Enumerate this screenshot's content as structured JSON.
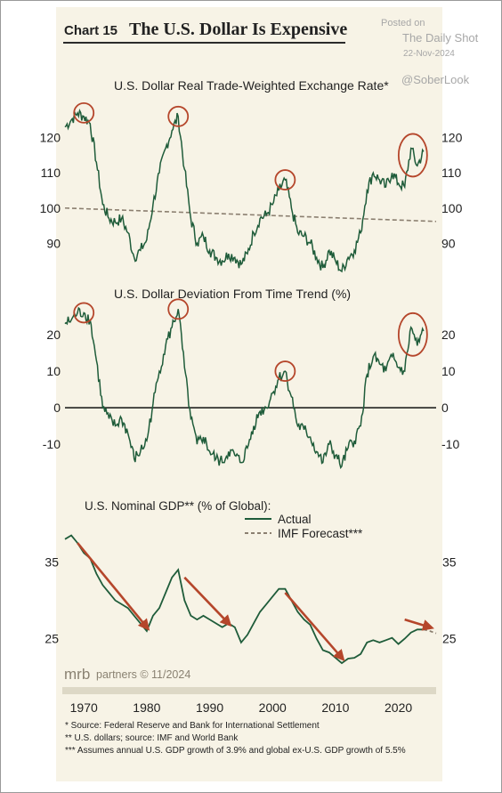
{
  "header": {
    "chart_number": "Chart 15",
    "title": "The U.S. Dollar Is Expensive"
  },
  "watermark": {
    "posted": "Posted on",
    "source": "The Daily Shot",
    "date": "22-Nov-2024",
    "handle": "@SoberLook"
  },
  "branding": {
    "logo": "mrb partners",
    "text": "partners © 11/2024"
  },
  "colors": {
    "actual": "#1f5c3a",
    "trend": "#8b7f70",
    "highlight": "#b5462b",
    "arrow": "#b5462b",
    "background": "#f7f3e6"
  },
  "chart_data": [
    {
      "type": "line",
      "title": "U.S. Dollar Real Trade-Weighted Exchange Rate*",
      "ylim": [
        82,
        130
      ],
      "yticks": [
        90,
        100,
        110,
        120
      ],
      "series": [
        {
          "values": [
            [
              1967,
              123
            ],
            [
              1968,
              125
            ],
            [
              1969,
              127
            ],
            [
              1970,
              126
            ],
            [
              1971,
              124
            ],
            [
              1972,
              113
            ],
            [
              1973,
              101
            ],
            [
              1974,
              97
            ],
            [
              1975,
              96
            ],
            [
              1976,
              97
            ],
            [
              1977,
              93
            ],
            [
              1978,
              86
            ],
            [
              1979,
              88
            ],
            [
              1980,
              91
            ],
            [
              1981,
              101
            ],
            [
              1982,
              110
            ],
            [
              1983,
              117
            ],
            [
              1984,
              122
            ],
            [
              1985,
              126
            ],
            [
              1986,
              111
            ],
            [
              1987,
              97
            ],
            [
              1988,
              90
            ],
            [
              1989,
              92
            ],
            [
              1990,
              88
            ],
            [
              1991,
              86
            ],
            [
              1992,
              85
            ],
            [
              1993,
              87
            ],
            [
              1994,
              86
            ],
            [
              1995,
              84
            ],
            [
              1996,
              87
            ],
            [
              1997,
              93
            ],
            [
              1998,
              97
            ],
            [
              1999,
              98
            ],
            [
              2000,
              101
            ],
            [
              2001,
              105
            ],
            [
              2002,
              108
            ],
            [
              2003,
              100
            ],
            [
              2004,
              93
            ],
            [
              2005,
              92
            ],
            [
              2006,
              90
            ],
            [
              2007,
              86
            ],
            [
              2008,
              83
            ],
            [
              2009,
              88
            ],
            [
              2010,
              85
            ],
            [
              2011,
              82
            ],
            [
              2012,
              86
            ],
            [
              2013,
              88
            ],
            [
              2014,
              93
            ],
            [
              2015,
              105
            ],
            [
              2016,
              110
            ],
            [
              2017,
              108
            ],
            [
              2018,
              106
            ],
            [
              2019,
              110
            ],
            [
              2020,
              107
            ],
            [
              2021,
              106
            ],
            [
              2022,
              117
            ],
            [
              2023,
              112
            ],
            [
              2024,
              116
            ]
          ]
        }
      ],
      "trend": [
        [
          1967,
          100
        ],
        [
          2026,
          96.2
        ]
      ],
      "highlights": [
        1970,
        1985,
        2002,
        2022
      ]
    },
    {
      "type": "line",
      "title": "U.S. Dollar Deviation From Time Trend (%)",
      "ylim": [
        -18,
        30
      ],
      "yticks": [
        -10,
        0,
        10,
        20
      ],
      "series": [
        {
          "values": [
            [
              1967,
              23
            ],
            [
              1968,
              24
            ],
            [
              1969,
              26
            ],
            [
              1970,
              26
            ],
            [
              1971,
              24
            ],
            [
              1972,
              13
            ],
            [
              1973,
              0
            ],
            [
              1974,
              -3
            ],
            [
              1975,
              -5
            ],
            [
              1976,
              -3
            ],
            [
              1977,
              -7
            ],
            [
              1978,
              -14
            ],
            [
              1979,
              -12
            ],
            [
              1980,
              -9
            ],
            [
              1981,
              1
            ],
            [
              1982,
              10
            ],
            [
              1983,
              17
            ],
            [
              1984,
              22
            ],
            [
              1985,
              27
            ],
            [
              1986,
              11
            ],
            [
              1987,
              -3
            ],
            [
              1988,
              -10
            ],
            [
              1989,
              -8
            ],
            [
              1990,
              -12
            ],
            [
              1991,
              -14
            ],
            [
              1992,
              -15
            ],
            [
              1993,
              -12
            ],
            [
              1994,
              -13
            ],
            [
              1995,
              -15
            ],
            [
              1996,
              -11
            ],
            [
              1997,
              -5
            ],
            [
              1998,
              -1
            ],
            [
              1999,
              0
            ],
            [
              2000,
              4
            ],
            [
              2001,
              8
            ],
            [
              2002,
              10
            ],
            [
              2003,
              3
            ],
            [
              2004,
              -5
            ],
            [
              2005,
              -6
            ],
            [
              2006,
              -8
            ],
            [
              2007,
              -12
            ],
            [
              2008,
              -15
            ],
            [
              2009,
              -10
            ],
            [
              2010,
              -13
            ],
            [
              2011,
              -16
            ],
            [
              2012,
              -11
            ],
            [
              2013,
              -9
            ],
            [
              2014,
              -5
            ],
            [
              2015,
              9
            ],
            [
              2016,
              14
            ],
            [
              2017,
              12
            ],
            [
              2018,
              10
            ],
            [
              2019,
              14
            ],
            [
              2020,
              11
            ],
            [
              2021,
              10
            ],
            [
              2022,
              22
            ],
            [
              2023,
              17
            ],
            [
              2024,
              21
            ]
          ]
        }
      ],
      "highlights": [
        1970,
        1985,
        2002,
        2022
      ]
    },
    {
      "type": "line",
      "title": "U.S. Nominal GDP** (% of Global):",
      "ylim": [
        21,
        41
      ],
      "yticks": [
        25,
        35
      ],
      "series": [
        {
          "name": "Actual",
          "values": [
            [
              1967,
              38
            ],
            [
              1968,
              38.5
            ],
            [
              1969,
              37.5
            ],
            [
              1970,
              36.2
            ],
            [
              1971,
              35.5
            ],
            [
              1972,
              33.5
            ],
            [
              1973,
              32
            ],
            [
              1974,
              31
            ],
            [
              1975,
              30
            ],
            [
              1976,
              29.5
            ],
            [
              1977,
              29
            ],
            [
              1978,
              28
            ],
            [
              1979,
              27
            ],
            [
              1980,
              26
            ],
            [
              1981,
              28
            ],
            [
              1982,
              29
            ],
            [
              1983,
              31
            ],
            [
              1984,
              33
            ],
            [
              1985,
              34
            ],
            [
              1986,
              30
            ],
            [
              1987,
              28
            ],
            [
              1988,
              27.5
            ],
            [
              1989,
              28
            ],
            [
              1990,
              27.5
            ],
            [
              1991,
              27
            ],
            [
              1992,
              26.5
            ],
            [
              1993,
              27
            ],
            [
              1994,
              26.5
            ],
            [
              1995,
              24.5
            ],
            [
              1996,
              25.5
            ],
            [
              1997,
              27
            ],
            [
              1998,
              28.5
            ],
            [
              1999,
              29.5
            ],
            [
              2000,
              30.5
            ],
            [
              2001,
              31.5
            ],
            [
              2002,
              31.5
            ],
            [
              2003,
              30
            ],
            [
              2004,
              28.5
            ],
            [
              2005,
              27.5
            ],
            [
              2006,
              26.8
            ],
            [
              2007,
              25
            ],
            [
              2008,
              23.5
            ],
            [
              2009,
              23.2
            ],
            [
              2010,
              22.5
            ],
            [
              2011,
              21.8
            ],
            [
              2012,
              22.4
            ],
            [
              2013,
              22.5
            ],
            [
              2014,
              23
            ],
            [
              2015,
              24.5
            ],
            [
              2016,
              24.8
            ],
            [
              2017,
              24.5
            ],
            [
              2018,
              24.8
            ],
            [
              2019,
              25.1
            ],
            [
              2020,
              24.3
            ],
            [
              2021,
              25
            ],
            [
              2022,
              25.8
            ],
            [
              2023,
              26.2
            ],
            [
              2024,
              26.2
            ]
          ]
        },
        {
          "name": "IMF Forecast***",
          "values": [
            [
              2024,
              26.2
            ],
            [
              2025,
              26
            ],
            [
              2026,
              25.7
            ]
          ]
        }
      ],
      "arrows": [
        [
          1969,
          37.5,
          1980,
          26.5
        ],
        [
          1986,
          33,
          1993,
          27
        ],
        [
          2002,
          31,
          2011,
          22.5
        ],
        [
          2021,
          27.5,
          2025,
          26.5
        ]
      ]
    }
  ],
  "xaxis": {
    "ticks": [
      "1970",
      "1980",
      "1990",
      "2000",
      "2010",
      "2020"
    ]
  },
  "footnotes": [
    "*   Source:  Federal Reserve and Bank for International Settlement",
    "**  U.S. dollars; source: IMF and World Bank",
    "*** Assumes annual U.S. GDP growth of 3.9% and global ex-U.S. GDP growth of 5.5%"
  ]
}
